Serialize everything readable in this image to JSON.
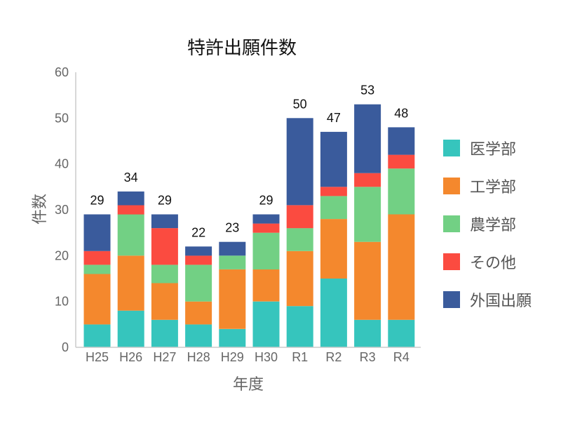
{
  "chart_data": {
    "type": "bar",
    "stacked": true,
    "title": "特許出願件数",
    "xlabel": "年度",
    "ylabel": "件数",
    "ylim": [
      0,
      60
    ],
    "yticks": [
      0,
      10,
      20,
      30,
      40,
      50,
      60
    ],
    "grid": false,
    "legend_position": "right",
    "categories": [
      "H25",
      "H26",
      "H27",
      "H28",
      "H29",
      "H30",
      "R1",
      "R2",
      "R3",
      "R4"
    ],
    "series": [
      {
        "name": "医学部",
        "color": "#36c5bd",
        "values": [
          5,
          8,
          6,
          5,
          4,
          10,
          9,
          15,
          6,
          6
        ]
      },
      {
        "name": "工学部",
        "color": "#f4882d",
        "values": [
          11,
          12,
          8,
          5,
          13,
          7,
          12,
          13,
          17,
          23
        ]
      },
      {
        "name": "農学部",
        "color": "#72d084",
        "values": [
          2,
          9,
          4,
          8,
          3,
          8,
          5,
          5,
          12,
          10
        ]
      },
      {
        "name": "その他",
        "color": "#fb4b40",
        "values": [
          3,
          2,
          8,
          2,
          0,
          2,
          5,
          2,
          3,
          3
        ]
      },
      {
        "name": "外国出願",
        "color": "#3a5b9c",
        "values": [
          8,
          3,
          3,
          2,
          3,
          2,
          19,
          12,
          15,
          6
        ]
      }
    ],
    "totals": [
      29,
      34,
      29,
      22,
      23,
      29,
      50,
      47,
      53,
      48
    ]
  }
}
